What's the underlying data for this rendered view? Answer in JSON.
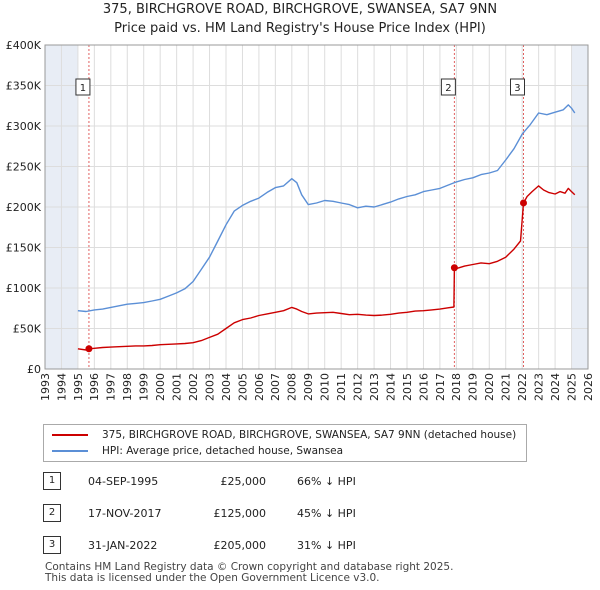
{
  "title_line1": "375, BIRCHGROVE ROAD, BIRCHGROVE, SWANSEA, SA7 9NN",
  "title_line2": "Price paid vs. HM Land Registry's House Price Index (HPI)",
  "colors": {
    "price": "#cc0000",
    "hpi": "#5b8fd6",
    "grid": "#dddddd",
    "shade": "#e8edf5",
    "marker": "#cc0000"
  },
  "legend": {
    "price": "375, BIRCHGROVE ROAD, BIRCHGROVE, SWANSEA, SA7 9NN (detached house)",
    "hpi": "HPI: Average price, detached house, Swansea"
  },
  "sales": [
    {
      "num": "1",
      "date": "04-SEP-1995",
      "price": "£25,000",
      "hpi": "66% ↓ HPI"
    },
    {
      "num": "2",
      "date": "17-NOV-2017",
      "price": "£125,000",
      "hpi": "45% ↓ HPI"
    },
    {
      "num": "3",
      "date": "31-JAN-2022",
      "price": "£205,000",
      "hpi": "31% ↓ HPI"
    }
  ],
  "footer_line1": "Contains HM Land Registry data © Crown copyright and database right 2025.",
  "footer_line2": "This data is licensed under the Open Government Licence v3.0.",
  "chart_data": {
    "type": "line",
    "title": "375, BIRCHGROVE ROAD, BIRCHGROVE, SWANSEA, SA7 9NN — Price paid vs. HM Land Registry's House Price Index (HPI)",
    "xlabel": "",
    "ylabel": "",
    "xlim": [
      1993,
      2026
    ],
    "ylim": [
      0,
      400000
    ],
    "x_ticks": [
      1993,
      1994,
      1995,
      1996,
      1997,
      1998,
      1999,
      2000,
      2001,
      2002,
      2003,
      2004,
      2005,
      2006,
      2007,
      2008,
      2009,
      2010,
      2011,
      2012,
      2013,
      2014,
      2015,
      2016,
      2017,
      2018,
      2019,
      2020,
      2021,
      2022,
      2023,
      2024,
      2025,
      2026
    ],
    "y_ticks": [
      {
        "value": 0,
        "label": "£0"
      },
      {
        "value": 50000,
        "label": "£50K"
      },
      {
        "value": 100000,
        "label": "£100K"
      },
      {
        "value": 150000,
        "label": "£150K"
      },
      {
        "value": 200000,
        "label": "£200K"
      },
      {
        "value": 250000,
        "label": "£250K"
      },
      {
        "value": 300000,
        "label": "£300K"
      },
      {
        "value": 350000,
        "label": "£350K"
      },
      {
        "value": 400000,
        "label": "£400K"
      }
    ],
    "shaded_ranges": [
      [
        1993,
        1995.0
      ],
      [
        2025.0,
        2026
      ]
    ],
    "series": [
      {
        "name": "375, BIRCHGROVE ROAD, BIRCHGROVE, SWANSEA, SA7 9NN (detached house)",
        "color": "#cc0000",
        "x": [
          1995.0,
          1995.5,
          1995.67,
          1996.0,
          1996.5,
          1997.0,
          1997.5,
          1998.0,
          1998.5,
          1999.0,
          1999.5,
          2000.0,
          2000.5,
          2001.0,
          2001.5,
          2002.0,
          2002.5,
          2003.0,
          2003.5,
          2004.0,
          2004.5,
          2005.0,
          2005.5,
          2006.0,
          2006.5,
          2007.0,
          2007.5,
          2008.0,
          2008.3,
          2008.6,
          2009.0,
          2009.5,
          2010.0,
          2010.5,
          2011.0,
          2011.5,
          2012.0,
          2012.5,
          2013.0,
          2013.5,
          2014.0,
          2014.5,
          2015.0,
          2015.5,
          2016.0,
          2016.5,
          2017.0,
          2017.5,
          2017.85,
          2017.88,
          2018.0,
          2018.5,
          2019.0,
          2019.5,
          2020.0,
          2020.5,
          2021.0,
          2021.5,
          2021.9,
          2022.08,
          2022.3,
          2022.6,
          2023.0,
          2023.3,
          2023.6,
          2024.0,
          2024.3,
          2024.6,
          2024.8,
          2025.0,
          2025.2
        ],
        "values": [
          25000,
          23500,
          25000,
          25500,
          26500,
          27000,
          27500,
          28000,
          28500,
          28500,
          29000,
          30000,
          30500,
          31000,
          31500,
          32500,
          35000,
          39000,
          43000,
          50000,
          57000,
          61000,
          63000,
          66000,
          68000,
          70000,
          72000,
          76000,
          74000,
          71000,
          68000,
          69000,
          69500,
          70000,
          68500,
          67000,
          67500,
          66500,
          66000,
          66500,
          67500,
          69000,
          70000,
          71500,
          72000,
          73000,
          74000,
          75500,
          76500,
          125000,
          124000,
          127000,
          129000,
          131000,
          130000,
          133000,
          138000,
          148000,
          158000,
          205000,
          213000,
          219000,
          226000,
          221000,
          218000,
          216000,
          219000,
          217000,
          223000,
          219000,
          215000
        ]
      },
      {
        "name": "HPI: Average price, detached house, Swansea",
        "color": "#5b8fd6",
        "x": [
          1995.0,
          1995.5,
          1996.0,
          1996.5,
          1997.0,
          1997.5,
          1998.0,
          1998.5,
          1999.0,
          1999.5,
          2000.0,
          2000.5,
          2001.0,
          2001.5,
          2002.0,
          2002.5,
          2003.0,
          2003.5,
          2004.0,
          2004.5,
          2005.0,
          2005.5,
          2006.0,
          2006.5,
          2007.0,
          2007.5,
          2008.0,
          2008.3,
          2008.6,
          2009.0,
          2009.5,
          2010.0,
          2010.5,
          2011.0,
          2011.5,
          2012.0,
          2012.5,
          2013.0,
          2013.5,
          2014.0,
          2014.5,
          2015.0,
          2015.5,
          2016.0,
          2016.5,
          2017.0,
          2017.5,
          2018.0,
          2018.5,
          2019.0,
          2019.5,
          2020.0,
          2020.5,
          2021.0,
          2021.5,
          2022.0,
          2022.5,
          2023.0,
          2023.5,
          2024.0,
          2024.5,
          2024.8,
          2025.0,
          2025.2
        ],
        "values": [
          72000,
          71000,
          73000,
          74000,
          76000,
          78000,
          80000,
          81000,
          82000,
          84000,
          86000,
          90000,
          94000,
          99000,
          108000,
          123000,
          138000,
          158000,
          178000,
          195000,
          202000,
          207000,
          211000,
          218000,
          224000,
          226000,
          235000,
          230000,
          215000,
          203000,
          205000,
          208000,
          207000,
          205000,
          203000,
          199000,
          201000,
          200000,
          203000,
          206000,
          210000,
          213000,
          215000,
          219000,
          221000,
          223000,
          227000,
          231000,
          234000,
          236000,
          240000,
          242000,
          245000,
          258000,
          272000,
          290000,
          302000,
          316000,
          314000,
          317000,
          320000,
          326000,
          322000,
          316000
        ]
      }
    ],
    "annotations": [
      {
        "label": "1",
        "x": 1995.67,
        "value": 25000
      },
      {
        "label": "2",
        "x": 2017.88,
        "value": 125000
      },
      {
        "label": "3",
        "x": 2022.08,
        "value": 205000
      }
    ]
  }
}
